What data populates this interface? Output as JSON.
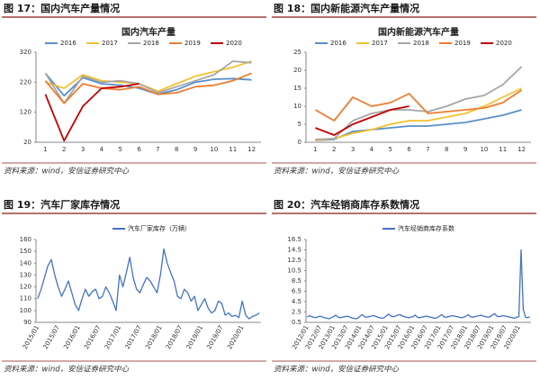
{
  "figures": [
    {
      "caption": "图 17：国内汽车产量情况",
      "source": "资料来源：wind，安信证券研究中心",
      "chart_data": {
        "type": "line",
        "title": "国内汽车产量",
        "categories": [
          "1",
          "2",
          "3",
          "4",
          "5",
          "6",
          "7",
          "8",
          "9",
          "10",
          "11",
          "12"
        ],
        "ylim": [
          20,
          320
        ],
        "yticks": [
          20,
          120,
          220,
          320
        ],
        "series": [
          {
            "name": "2016",
            "color": "#5b8fc9",
            "values": [
              250,
              175,
              235,
              215,
              210,
              200,
              180,
              195,
              220,
              230,
              232,
              228
            ]
          },
          {
            "name": "2017",
            "color": "#f2c230",
            "values": [
              220,
              200,
              245,
              225,
              220,
              215,
              190,
              215,
              240,
              255,
              270,
              290
            ]
          },
          {
            "name": "2018",
            "color": "#a6a6a6",
            "values": [
              250,
              150,
              240,
              220,
              225,
              215,
              185,
              205,
              225,
              245,
              290,
              285
            ]
          },
          {
            "name": "2019",
            "color": "#ed7d31",
            "values": [
              225,
              150,
              215,
              200,
              195,
              205,
              180,
              185,
              205,
              210,
              225,
              250
            ]
          },
          {
            "name": "2020",
            "color": "#c00000",
            "values": [
              180,
              25,
              140,
              200,
              205,
              215,
              null,
              null,
              null,
              null,
              null,
              null
            ]
          }
        ]
      }
    },
    {
      "caption": "图 18：国内新能源汽车产量情况",
      "source": "资料来源：wind，安信证券研究中心",
      "chart_data": {
        "type": "line",
        "title": "国内新能源汽车产量",
        "categories": [
          "1",
          "2",
          "3",
          "4",
          "5",
          "6",
          "7",
          "8",
          "9",
          "10",
          "11",
          "12"
        ],
        "ylim": [
          0,
          25
        ],
        "yticks": [
          0,
          5,
          10,
          15,
          20,
          25
        ],
        "series": [
          {
            "name": "2016",
            "color": "#5b8fc9",
            "values": [
              0.5,
              0.8,
              3,
              3.5,
              4,
              4.5,
              4.5,
              5,
              5.5,
              6.5,
              7.5,
              9
            ]
          },
          {
            "name": "2017",
            "color": "#f2c230",
            "values": [
              0.5,
              1,
              2.5,
              3.5,
              5,
              6,
              6,
              7,
              8,
              10,
              12.5,
              15
            ]
          },
          {
            "name": "2018",
            "color": "#a6a6a6",
            "values": [
              0.8,
              1,
              6,
              8,
              9,
              9,
              8.5,
              10,
              12,
              13,
              16,
              21
            ]
          },
          {
            "name": "2019",
            "color": "#ed7d31",
            "values": [
              9,
              6,
              12.5,
              10,
              11,
              13.5,
              8,
              8.5,
              9,
              9.5,
              11,
              14.5
            ]
          },
          {
            "name": "2020",
            "color": "#c00000",
            "values": [
              4,
              2,
              5,
              7,
              9,
              10,
              null,
              null,
              null,
              null,
              null,
              null
            ]
          }
        ]
      }
    },
    {
      "caption": "图 19：汽车厂家库存情况",
      "source": "资料来源：wind，安信证券研究中心",
      "chart_data": {
        "type": "line",
        "categories": [
          "2015/01",
          null,
          null,
          null,
          null,
          null,
          "2015/07",
          null,
          null,
          null,
          null,
          null,
          "2016/01",
          null,
          null,
          null,
          null,
          null,
          "2016/07",
          null,
          null,
          null,
          null,
          null,
          "2017/01",
          null,
          null,
          null,
          null,
          null,
          "2017/07",
          null,
          null,
          null,
          null,
          null,
          "2018/01",
          null,
          null,
          null,
          null,
          null,
          "2018/07",
          null,
          null,
          null,
          null,
          null,
          "2019/01",
          null,
          null,
          null,
          null,
          null,
          "2019/07",
          null,
          null,
          null,
          null,
          null,
          "2020/01",
          null,
          null,
          null,
          null,
          null
        ],
        "ylim": [
          90,
          160
        ],
        "yticks": [
          90,
          100,
          110,
          120,
          130,
          140,
          150,
          160
        ],
        "series": [
          {
            "name": "汽车厂家库存（万辆）",
            "color": "#4472c4",
            "values": [
              110,
              118,
              128,
              138,
              143,
              130,
              120,
              112,
              118,
              125,
              115,
              105,
              100,
              110,
              118,
              112,
              116,
              118,
              110,
              112,
              120,
              115,
              108,
              100,
              130,
              120,
              132,
              145,
              128,
              118,
              115,
              122,
              128,
              125,
              120,
              115,
              130,
              152,
              140,
              132,
              125,
              112,
              110,
              118,
              115,
              108,
              112,
              100,
              105,
              110,
              102,
              98,
              100,
              108,
              106,
              96,
              98,
              95,
              96,
              94,
              108,
              96,
              93,
              95,
              96,
              98
            ]
          }
        ]
      }
    },
    {
      "caption": "图 20：汽车经销商库存系数情况",
      "source": "资料来源：wind，安信证券研究中心",
      "chart_data": {
        "type": "line",
        "categories": [
          "2012/01",
          null,
          null,
          null,
          null,
          null,
          "2012/07",
          null,
          null,
          null,
          null,
          null,
          "2013/01",
          null,
          null,
          null,
          null,
          null,
          "2013/07",
          null,
          null,
          null,
          null,
          null,
          "2014/01",
          null,
          null,
          null,
          null,
          null,
          "2014/07",
          null,
          null,
          null,
          null,
          null,
          "2015/01",
          null,
          null,
          null,
          null,
          null,
          "2015/07",
          null,
          null,
          null,
          null,
          null,
          "2016/01",
          null,
          null,
          null,
          null,
          null,
          "2016/07",
          null,
          null,
          null,
          null,
          null,
          "2017/01",
          null,
          null,
          null,
          null,
          null,
          "2017/07",
          null,
          null,
          null,
          null,
          null,
          "2018/01",
          null,
          null,
          null,
          null,
          null,
          "2018/07",
          null,
          null,
          null,
          null,
          null,
          "2019/01",
          null,
          null,
          null,
          null,
          null,
          "2019/07",
          null,
          null,
          null,
          null,
          null,
          "2020/01",
          null,
          null,
          null,
          null,
          null
        ],
        "ylim": [
          0.5,
          16.5
        ],
        "yticks": [
          0.5,
          2.5,
          4.5,
          6.5,
          8.5,
          10.5,
          12.5,
          14.5,
          16.5
        ],
        "series": [
          {
            "name": "汽车经销商库存系数",
            "color": "#4472c4",
            "values": [
              1.5,
              1.8,
              1.6,
              1.5,
              1.4,
              1.6,
              1.7,
              1.5,
              1.4,
              1.3,
              1.2,
              1.4,
              1.6,
              1.9,
              1.5,
              1.4,
              1.5,
              1.6,
              1.7,
              1.6,
              1.4,
              1.3,
              1.2,
              1.3,
              1.7,
              2.0,
              1.6,
              1.5,
              1.6,
              1.7,
              1.8,
              1.7,
              1.5,
              1.4,
              1.3,
              1.4,
              1.8,
              2.1,
              1.7,
              1.6,
              1.7,
              1.9,
              2.0,
              1.8,
              1.6,
              1.5,
              1.4,
              1.5,
              1.6,
              1.9,
              1.5,
              1.4,
              1.5,
              1.6,
              1.7,
              1.6,
              1.5,
              1.4,
              1.3,
              1.4,
              1.7,
              2.0,
              1.6,
              1.5,
              1.6,
              1.7,
              1.8,
              1.7,
              1.6,
              1.5,
              1.4,
              1.5,
              1.7,
              2.0,
              1.6,
              1.5,
              1.6,
              1.7,
              1.8,
              1.9,
              1.7,
              1.6,
              1.5,
              1.6,
              1.9,
              2.2,
              1.7,
              1.6,
              1.7,
              1.8,
              1.7,
              1.6,
              1.5,
              1.4,
              1.3,
              1.5,
              1.6,
              14.5,
              3.0,
              1.5,
              1.4,
              1.6
            ]
          }
        ]
      }
    }
  ]
}
